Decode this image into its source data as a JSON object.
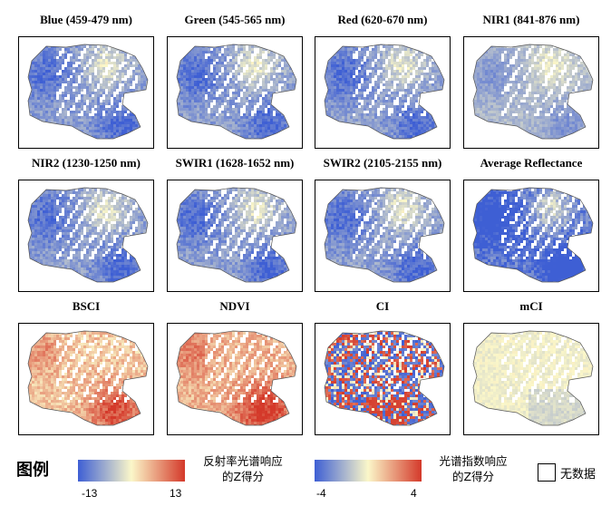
{
  "panels": [
    {
      "title": "Blue (459-479 nm)",
      "style": "reflect",
      "colormap": "reflectance"
    },
    {
      "title": "Green (545-565 nm)",
      "style": "reflect",
      "colormap": "reflectance"
    },
    {
      "title": "Red (620-670 nm)",
      "style": "reflect",
      "colormap": "reflectance"
    },
    {
      "title": "NIR1 (841-876 nm)",
      "style": "reflect-pale",
      "colormap": "reflectance"
    },
    {
      "title": "NIR2 (1230-1250 nm)",
      "style": "reflect",
      "colormap": "reflectance"
    },
    {
      "title": "SWIR1 (1628-1652 nm)",
      "style": "reflect",
      "colormap": "reflectance"
    },
    {
      "title": "SWIR2 (2105-2155 nm)",
      "style": "reflect",
      "colormap": "reflectance"
    },
    {
      "title": "Average Reflectance",
      "style": "reflect-strong",
      "colormap": "reflectance"
    },
    {
      "title": "BSCI",
      "style": "warm",
      "colormap": "index"
    },
    {
      "title": "NDVI",
      "style": "warm-strong",
      "colormap": "index"
    },
    {
      "title": "CI",
      "style": "speckle",
      "colormap": "index"
    },
    {
      "title": "mCI",
      "style": "pale",
      "colormap": "index"
    }
  ],
  "legend": {
    "title": "图例",
    "reflectance": {
      "label_line1": "反射率光谱响应",
      "label_line2": "的Z得分",
      "min": "-13",
      "max": "13"
    },
    "index": {
      "label_line1": "光谱指数响应",
      "label_line2": "的Z得分",
      "min": "-4",
      "max": "4"
    },
    "nodata": "无数据"
  },
  "colors": {
    "low": "#3e5fd4",
    "mid": "#fbf7c9",
    "high": "#d4392a",
    "frame": "#000000"
  }
}
